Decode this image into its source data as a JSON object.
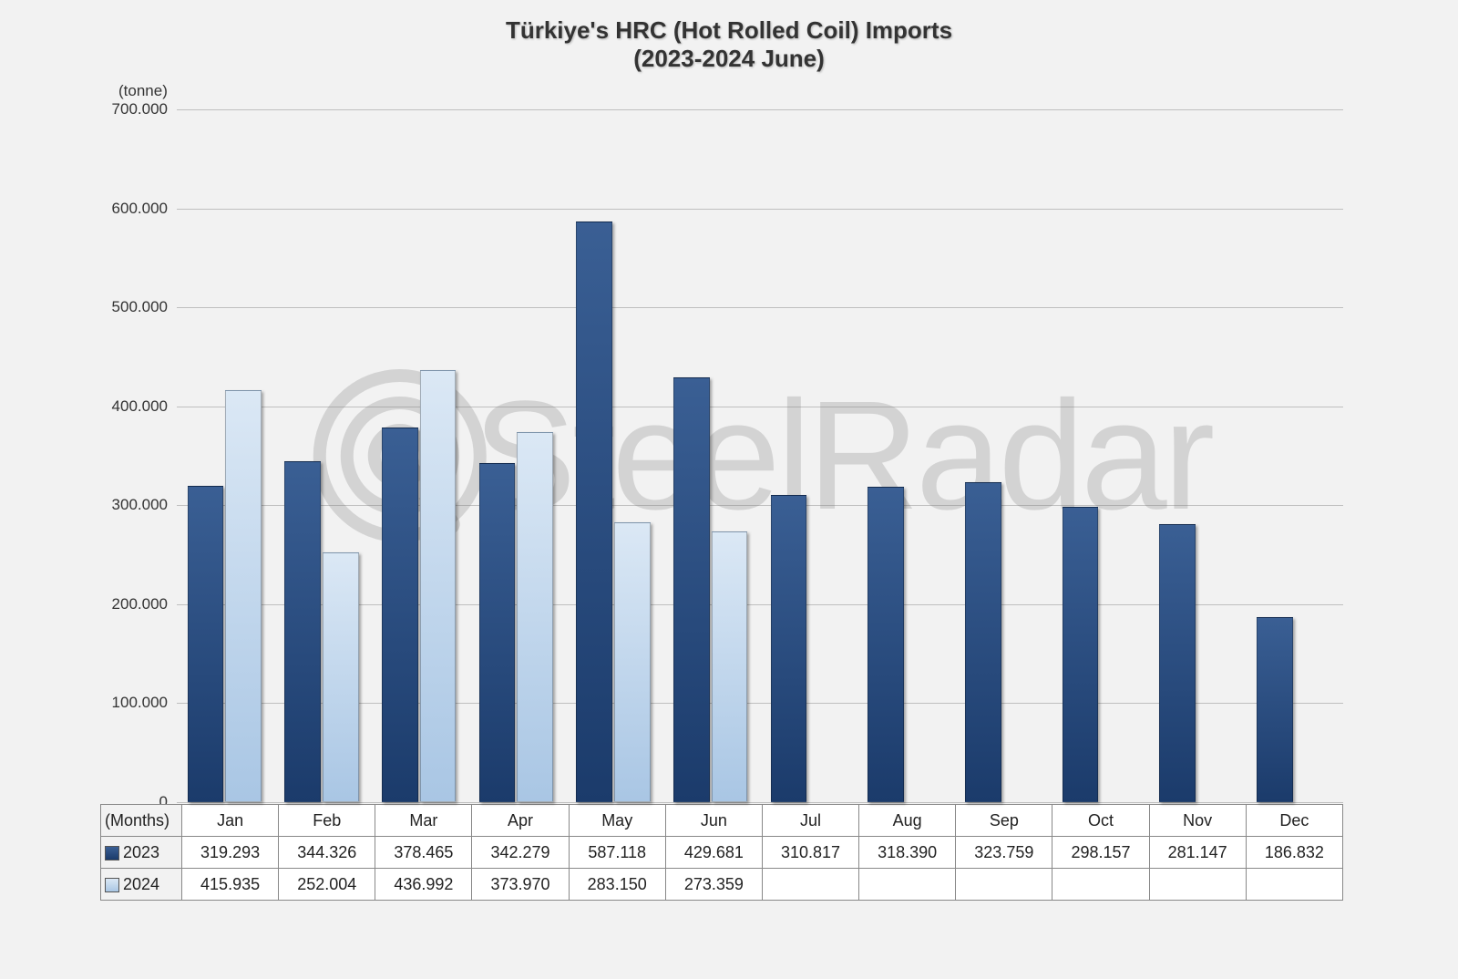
{
  "chart": {
    "type": "bar",
    "title_line1": "Türkiye's HRC (Hot Rolled Coil) Imports",
    "title_line2": "(2023-2024 June)",
    "title_fontsize": 26,
    "title_color": "#333333",
    "y_unit_label": "(tonne)",
    "x_unit_label": "(Months)",
    "background_color": "#f2f2f2",
    "plot_background_color": "#f2f2f2",
    "grid_color": "#bfbfbf",
    "watermark_text": "SteelRadar",
    "watermark_color": "rgba(120,120,120,0.25)",
    "ylim": [
      0,
      700000
    ],
    "ytick_step": 100000,
    "yticks": [
      "0",
      "100.000",
      "200.000",
      "300.000",
      "400.000",
      "500.000",
      "600.000",
      "700.000"
    ],
    "categories": [
      "Jan",
      "Feb",
      "Mar",
      "Apr",
      "May",
      "Jun",
      "Jul",
      "Aug",
      "Sep",
      "Oct",
      "Nov",
      "Dec"
    ],
    "series": [
      {
        "name": "2023",
        "color_top": "#3a5f94",
        "color_bottom": "#1b3b6b",
        "values": [
          319293,
          344326,
          378465,
          342279,
          587118,
          429681,
          310817,
          318390,
          323759,
          298157,
          281147,
          186832
        ],
        "labels": [
          "319.293",
          "344.326",
          "378.465",
          "342.279",
          "587.118",
          "429.681",
          "310.817",
          "318.390",
          "323.759",
          "298.157",
          "281.147",
          "186.832"
        ]
      },
      {
        "name": "2024",
        "color_top": "#dbe8f5",
        "color_bottom": "#a9c6e4",
        "values": [
          415935,
          252004,
          436992,
          373970,
          283150,
          273359,
          null,
          null,
          null,
          null,
          null,
          null
        ],
        "labels": [
          "415.935",
          "252.004",
          "436.992",
          "373.970",
          "283.150",
          "273.359",
          "",
          "",
          "",
          "",
          "",
          ""
        ]
      }
    ],
    "bar_group_width_ratio": 0.78,
    "bar_shadow": "2px 2px 3px rgba(0,0,0,0.35)",
    "axis_font_size": 17,
    "table_font_size": 18,
    "table_border_color": "#888888"
  }
}
